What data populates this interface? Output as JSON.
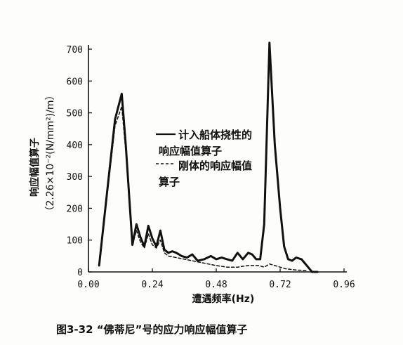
{
  "chart_data": {
    "type": "line",
    "title": "",
    "caption": "图3-32 “佛蒂尼”号的应力响应幅值算子",
    "xlabel": "遭遇频率(Hz)",
    "ylabel_line1": "响应幅值算子",
    "ylabel_line2": "（2.26×10⁻²(N/mm²)/m）",
    "xlim": [
      0,
      0.96
    ],
    "ylim": [
      0,
      700
    ],
    "xticks": [
      0.0,
      0.24,
      0.48,
      0.72,
      0.96
    ],
    "xtick_labels": [
      "0.00",
      "0.24",
      "0.48",
      "0.72",
      "0.96"
    ],
    "yticks": [
      0,
      100,
      200,
      300,
      400,
      500,
      600,
      700
    ],
    "ytick_labels": [
      "0",
      "100",
      "200",
      "300",
      "400",
      "500",
      "600",
      "700"
    ],
    "legend_entries": [
      [
        "计入船体挠性的",
        "响应幅值算子"
      ],
      [
        "刚体的响应幅值",
        "算子"
      ]
    ],
    "series": [
      {
        "style": "solid",
        "color": "#111111",
        "x": [
          0.04,
          0.07,
          0.1,
          0.125,
          0.14,
          0.165,
          0.18,
          0.195,
          0.21,
          0.225,
          0.24,
          0.255,
          0.27,
          0.285,
          0.3,
          0.315,
          0.33,
          0.35,
          0.37,
          0.39,
          0.41,
          0.435,
          0.46,
          0.48,
          0.5,
          0.52,
          0.54,
          0.56,
          0.58,
          0.6,
          0.615,
          0.63,
          0.645,
          0.66,
          0.68,
          0.7,
          0.72,
          0.735,
          0.75,
          0.765,
          0.78,
          0.8,
          0.82,
          0.84,
          0.86
        ],
        "y": [
          20,
          250,
          480,
          560,
          400,
          85,
          150,
          110,
          80,
          145,
          105,
          80,
          130,
          70,
          60,
          65,
          60,
          50,
          45,
          55,
          35,
          40,
          50,
          40,
          45,
          40,
          35,
          60,
          40,
          60,
          55,
          40,
          40,
          150,
          720,
          400,
          200,
          80,
          40,
          35,
          45,
          40,
          20,
          0,
          0
        ]
      },
      {
        "style": "dashed",
        "color": "#111111",
        "x": [
          0.04,
          0.07,
          0.1,
          0.125,
          0.14,
          0.165,
          0.18,
          0.195,
          0.21,
          0.225,
          0.24,
          0.255,
          0.27,
          0.285,
          0.3,
          0.33,
          0.36,
          0.39,
          0.42,
          0.45,
          0.48,
          0.52,
          0.56,
          0.6,
          0.64,
          0.66,
          0.68,
          0.7,
          0.72,
          0.74,
          0.76,
          0.78,
          0.8,
          0.82
        ],
        "y": [
          20,
          240,
          460,
          520,
          380,
          85,
          130,
          95,
          75,
          120,
          85,
          75,
          100,
          60,
          50,
          45,
          40,
          35,
          30,
          25,
          20,
          15,
          15,
          20,
          20,
          15,
          25,
          20,
          15,
          10,
          8,
          6,
          5,
          4
        ]
      }
    ]
  }
}
